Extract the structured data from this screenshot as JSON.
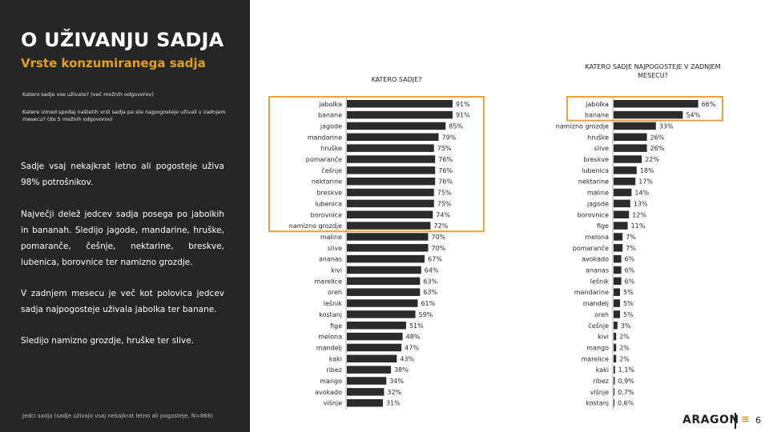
{
  "title": "O UŽIVANJU SADJA",
  "subtitle": "Vrste konzumiranega sadja",
  "questions": {
    "q1": "Katero sadje vse uživate? (več možnih odgovorov)",
    "q2": "Katere izmed spodaj naštetih vrst sadja pa ste najpogosteje uživali v zadnjem mesecu? (do 5 možnih odgovorov)"
  },
  "paragraphs": [
    "Sadje vsaj nekajkrat letno ali pogosteje uživa 98% potrošnikov.",
    "Največji delež jedcev sadja posega po jabolkih in bananah. Sledijo jagode, mandarine, hruške, pomaranče, češnje, nektarine, breskve, lubenica, borovnice ter namizno grozdje.",
    "V zadnjem mesecu je več kot polovica jedcev sadja najpogosteje uživala jabolka ter banane.",
    "Sledijo namizno grozdje, hruške ter slive."
  ],
  "note": "Jedci sadja (sadje uživajo vsaj nekajkrat letno ali pogosteje, N=868)",
  "footer": {
    "logo": "ARAGON",
    "logo_mark": "≡",
    "page": "6"
  },
  "colors": {
    "bar": "#2b2b2b",
    "highlight": "#e8a33a",
    "panel": "#262626",
    "accent": "#e3a018"
  },
  "chart_data": [
    {
      "type": "bar",
      "orientation": "horizontal",
      "title": "KATERO SADJE?",
      "value_format": "%",
      "xlim": [
        0,
        100
      ],
      "highlight_range": [
        0,
        11
      ],
      "categories": [
        "jabolka",
        "banane",
        "jagode",
        "mandarine",
        "hruške",
        "pomaranče",
        "češnje",
        "nektarine",
        "breskve",
        "lubenica",
        "borovnice",
        "namizno grozdje",
        "maline",
        "slive",
        "ananas",
        "kivi",
        "marelice",
        "oreh",
        "lešnik",
        "kostanj",
        "fige",
        "melona",
        "mandelj",
        "kaki",
        "ribez",
        "mango",
        "avokado",
        "višnje"
      ],
      "values": [
        91,
        91,
        85,
        79,
        75,
        76,
        76,
        76,
        75,
        75,
        74,
        72,
        70,
        70,
        67,
        64,
        63,
        63,
        61,
        59,
        51,
        48,
        47,
        43,
        38,
        34,
        32,
        31
      ],
      "labels": [
        "91%",
        "91%",
        "85%",
        "79%",
        "75%",
        "76%",
        "76%",
        "76%",
        "75%",
        "75%",
        "74%",
        "72%",
        "70%",
        "70%",
        "67%",
        "64%",
        "63%",
        "63%",
        "61%",
        "59%",
        "51%",
        "48%",
        "47%",
        "43%",
        "38%",
        "34%",
        "32%",
        "31%"
      ]
    },
    {
      "type": "bar",
      "orientation": "horizontal",
      "title": "KATERO SADJE NAJPOGOSTEJE V ZADNJEM MESECU?",
      "value_format": "%",
      "xlim": [
        0,
        100
      ],
      "highlight_range": [
        0,
        1
      ],
      "categories": [
        "jabolka",
        "banane",
        "namizno grozdje",
        "hruške",
        "slive",
        "breskve",
        "lubenica",
        "nektarine",
        "maline",
        "jagode",
        "borovnice",
        "fige",
        "melona",
        "pomaranče",
        "avokado",
        "ananas",
        "lešnik",
        "mandarine",
        "mandelj",
        "oreh",
        "češnje",
        "kivi",
        "mango",
        "marelice",
        "kaki",
        "ribez",
        "višnje",
        "kostanj"
      ],
      "values": [
        66,
        54,
        33,
        26,
        26,
        22,
        18,
        17,
        14,
        13,
        12,
        11,
        7,
        7,
        6,
        6,
        6,
        5,
        5,
        5,
        3,
        2,
        2,
        2,
        1.1,
        0.9,
        0.7,
        0.6
      ],
      "labels": [
        "66%",
        "54%",
        "33%",
        "26%",
        "26%",
        "22%",
        "18%",
        "17%",
        "14%",
        "13%",
        "12%",
        "11%",
        "7%",
        "7%",
        "6%",
        "6%",
        "6%",
        "5%",
        "5%",
        "5%",
        "3%",
        "2%",
        "2%",
        "2%",
        "1,1%",
        "0,9%",
        "0,7%",
        "0,6%"
      ]
    }
  ]
}
